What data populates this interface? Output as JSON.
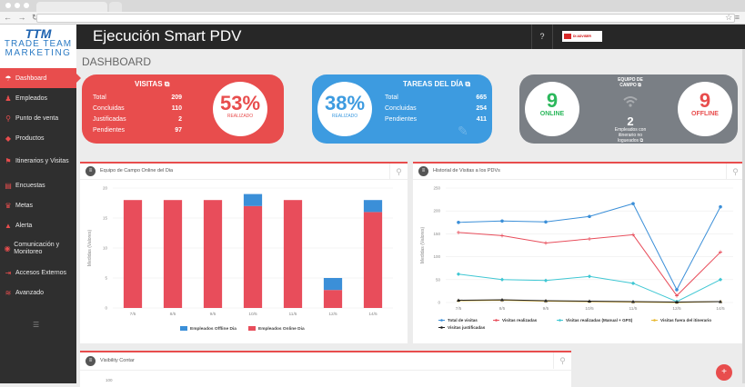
{
  "app": {
    "title": "Ejecución Smart PDV",
    "help": "?",
    "user_label": "DI ADVISER"
  },
  "logo": {
    "mark": "TTM",
    "line1": "TRADE TEAM",
    "line2": "MARKETING"
  },
  "page_title": "DASHBOARD",
  "sidebar": {
    "items": [
      {
        "label": "Dashboard",
        "icon": "dashboard-icon",
        "glyph": "☂",
        "active": true
      },
      {
        "label": "Empleados",
        "icon": "users-icon",
        "glyph": "♟"
      },
      {
        "label": "Punto de venta",
        "icon": "map-pin-icon",
        "glyph": "⚲"
      },
      {
        "label": "Productos",
        "icon": "tag-icon",
        "glyph": "◆"
      },
      {
        "label": "Itinerarios y Visitas",
        "icon": "flag-icon",
        "glyph": "⚑"
      },
      {
        "label": "Encuestas",
        "icon": "document-icon",
        "glyph": "▤"
      },
      {
        "label": "Metas",
        "icon": "trophy-icon",
        "glyph": "♛"
      },
      {
        "label": "Alerta",
        "icon": "bell-icon",
        "glyph": "▲"
      },
      {
        "label": "Comunicación y Monitoreo",
        "icon": "eye-icon",
        "glyph": "◉"
      },
      {
        "label": "Accesos Externos",
        "icon": "sign-in-icon",
        "glyph": "⇥"
      },
      {
        "label": "Avanzado",
        "icon": "graduation-cap-icon",
        "glyph": "≋"
      }
    ]
  },
  "kpi": {
    "visitas": {
      "title": "VISITAS",
      "rows": [
        {
          "label": "Total",
          "value": "209"
        },
        {
          "label": "Concluidas",
          "value": "110"
        },
        {
          "label": "Justificadas",
          "value": "2"
        },
        {
          "label": "Pendientes",
          "value": "97"
        }
      ],
      "percent": "53%",
      "percent_label": "REALIZADO"
    },
    "tareas": {
      "title": "TAREAS DEL DÍA",
      "rows": [
        {
          "label": "Total",
          "value": "665"
        },
        {
          "label": "Concluidas",
          "value": "254"
        },
        {
          "label": "Pendientes",
          "value": "411"
        }
      ],
      "percent": "38%",
      "percent_label": "REALIZADO"
    },
    "equipo": {
      "title_line1": "EQUIPO DE",
      "title_line2": "CAMPO",
      "online": "9",
      "online_label": "ONLINE",
      "offline": "9",
      "offline_label": "OFFLINE",
      "center_value": "2",
      "center_line1": "Empleados con",
      "center_line2": "itinerario no",
      "center_line3": "logueados"
    }
  },
  "panels": {
    "p1_title": "Equipo de Campo Online del Dia",
    "p2_title": "Historial de Visitas a los PDVs",
    "p3_title": "Visibility Contar",
    "p3_tick": "100"
  },
  "colors": {
    "red": "#e84d4d",
    "blue": "#3d9be0",
    "gray": "#7a7f85",
    "bar_blue": "#3b8fd8"
  },
  "chart_data": [
    {
      "type": "bar",
      "title": "Equipo de Campo Online del Dia",
      "ylabel": "Medidas (Valores)",
      "categories": [
        "7/5",
        "8/5",
        "9/5",
        "10/5",
        "11/5",
        "12/5",
        "14/5"
      ],
      "ylim": [
        0,
        20
      ],
      "yticks": [
        "0",
        "5",
        "10",
        "15",
        "20"
      ],
      "stacked": true,
      "series": [
        {
          "name": "Empleados Online Dia",
          "color": "#e84d5b",
          "values": [
            18,
            18,
            18,
            17,
            18,
            3,
            16
          ]
        },
        {
          "name": "Empleados Offline Dia",
          "color": "#3b8fd8",
          "values": [
            0,
            0,
            0,
            2,
            0,
            2,
            2
          ]
        }
      ],
      "legend_position": "bottom"
    },
    {
      "type": "line",
      "title": "Historial de Visitas a los PDVs",
      "ylabel": "Medidas (Valores)",
      "categories": [
        "7/5",
        "8/5",
        "9/5",
        "10/5",
        "11/5",
        "12/5",
        "14/5"
      ],
      "ylim": [
        0,
        250
      ],
      "yticks": [
        "0",
        "50",
        "100",
        "150",
        "200",
        "250"
      ],
      "series": [
        {
          "name": "Total de visitas",
          "color": "#3b8fd8",
          "marker": "circle",
          "values": [
            175,
            178,
            176,
            188,
            216,
            28,
            209
          ]
        },
        {
          "name": "Visitas realizadas",
          "color": "#e84d5b",
          "marker": "plus",
          "values": [
            153,
            146,
            130,
            139,
            148,
            15,
            110
          ]
        },
        {
          "name": "Visitas realizadas (Manual + GPS)",
          "color": "#3fc7d3",
          "marker": "diamond",
          "values": [
            62,
            50,
            48,
            57,
            42,
            2,
            50
          ]
        },
        {
          "name": "Visitas fuera del itinerario",
          "color": "#e8b830",
          "marker": "plus",
          "values": [
            4,
            5,
            3,
            2,
            1,
            0,
            2
          ]
        },
        {
          "name": "Visitas justificadas",
          "color": "#222222",
          "marker": "triangle",
          "values": [
            5,
            6,
            4,
            3,
            2,
            1,
            2
          ]
        }
      ],
      "legend_position": "bottom"
    }
  ]
}
